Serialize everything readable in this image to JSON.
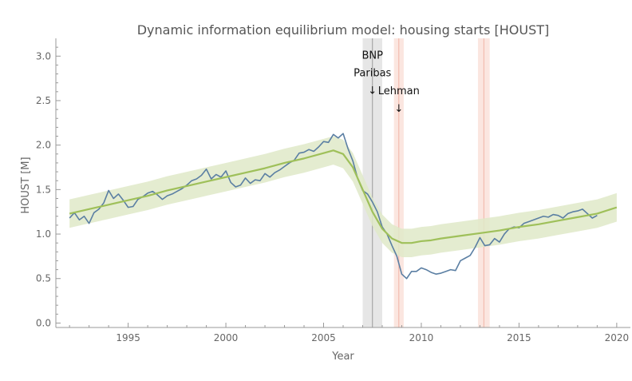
{
  "chart_data": {
    "type": "line",
    "title": "Dynamic information equilibrium model: housing starts [HOUST]",
    "xlabel": "Year",
    "ylabel": "HOUST [M]",
    "xlim": [
      1991.3,
      2020.7
    ],
    "ylim": [
      -0.05,
      3.2
    ],
    "x_ticks": [
      1995,
      2000,
      2005,
      2010,
      2015,
      2020
    ],
    "y_ticks": [
      0.0,
      0.5,
      1.0,
      1.5,
      2.0,
      2.5,
      3.0
    ],
    "grid": false,
    "colors": {
      "data": "#5b7fa3",
      "model": "#9fc05a",
      "band": "#dfe9c8",
      "recession": "#e6e6e6",
      "recession_line": "#9a9a9a",
      "shock": "#fbe6e0",
      "shock_line": "#f0b4a6"
    },
    "series": [
      {
        "name": "HOUST data",
        "x": [
          1992.0,
          1992.25,
          1992.5,
          1992.75,
          1993.0,
          1993.25,
          1993.5,
          1993.75,
          1994.0,
          1994.25,
          1994.5,
          1994.75,
          1995.0,
          1995.25,
          1995.5,
          1995.75,
          1996.0,
          1996.25,
          1996.5,
          1996.75,
          1997.0,
          1997.25,
          1997.5,
          1997.75,
          1998.0,
          1998.25,
          1998.5,
          1998.75,
          1999.0,
          1999.25,
          1999.5,
          1999.75,
          2000.0,
          2000.25,
          2000.5,
          2000.75,
          2001.0,
          2001.25,
          2001.5,
          2001.75,
          2002.0,
          2002.25,
          2002.5,
          2002.75,
          2003.0,
          2003.25,
          2003.5,
          2003.75,
          2004.0,
          2004.25,
          2004.5,
          2004.75,
          2005.0,
          2005.25,
          2005.5,
          2005.75,
          2006.0,
          2006.25,
          2006.5,
          2006.75,
          2007.0,
          2007.25,
          2007.5,
          2007.75,
          2008.0,
          2008.25,
          2008.5,
          2008.75,
          2009.0,
          2009.25,
          2009.5,
          2009.75,
          2010.0,
          2010.25,
          2010.5,
          2010.75,
          2011.0,
          2011.25,
          2011.5,
          2011.75,
          2012.0,
          2012.25,
          2012.5,
          2012.75,
          2013.0,
          2013.25,
          2013.5,
          2013.75,
          2014.0,
          2014.25,
          2014.5,
          2014.75,
          2015.0,
          2015.25,
          2015.5,
          2015.75,
          2016.0,
          2016.25,
          2016.5,
          2016.75,
          2017.0,
          2017.25,
          2017.5,
          2017.75,
          2018.0,
          2018.25,
          2018.5,
          2018.75,
          2019.0
        ],
        "values": [
          1.18,
          1.24,
          1.16,
          1.2,
          1.12,
          1.24,
          1.28,
          1.35,
          1.49,
          1.4,
          1.45,
          1.38,
          1.3,
          1.31,
          1.39,
          1.42,
          1.46,
          1.48,
          1.44,
          1.39,
          1.43,
          1.45,
          1.48,
          1.51,
          1.55,
          1.6,
          1.62,
          1.66,
          1.73,
          1.62,
          1.67,
          1.64,
          1.71,
          1.58,
          1.53,
          1.55,
          1.63,
          1.57,
          1.61,
          1.6,
          1.68,
          1.64,
          1.69,
          1.72,
          1.76,
          1.8,
          1.83,
          1.91,
          1.92,
          1.95,
          1.93,
          1.98,
          2.04,
          2.03,
          2.12,
          2.08,
          2.13,
          1.96,
          1.82,
          1.62,
          1.49,
          1.45,
          1.36,
          1.25,
          1.08,
          1.0,
          0.87,
          0.75,
          0.55,
          0.5,
          0.58,
          0.58,
          0.62,
          0.6,
          0.57,
          0.55,
          0.56,
          0.58,
          0.6,
          0.59,
          0.7,
          0.73,
          0.76,
          0.85,
          0.96,
          0.87,
          0.88,
          0.95,
          0.91,
          1.0,
          1.06,
          1.08,
          1.07,
          1.12,
          1.14,
          1.16,
          1.18,
          1.2,
          1.19,
          1.22,
          1.21,
          1.18,
          1.23,
          1.25,
          1.26,
          1.28,
          1.23,
          1.18,
          1.21
        ]
      },
      {
        "name": "Model",
        "x": [
          1992.0,
          1993.0,
          1994.0,
          1995.0,
          1996.0,
          1997.0,
          1998.0,
          1999.0,
          2000.0,
          2001.0,
          2002.0,
          2003.0,
          2004.0,
          2005.0,
          2005.5,
          2006.0,
          2006.5,
          2007.0,
          2007.5,
          2008.0,
          2008.5,
          2009.0,
          2009.5,
          2010.0,
          2010.5,
          2011.0,
          2012.0,
          2013.0,
          2014.0,
          2015.0,
          2016.0,
          2017.0,
          2018.0,
          2019.0,
          2020.0
        ],
        "values": [
          1.23,
          1.28,
          1.33,
          1.38,
          1.43,
          1.49,
          1.54,
          1.59,
          1.64,
          1.69,
          1.74,
          1.8,
          1.85,
          1.91,
          1.94,
          1.9,
          1.75,
          1.5,
          1.25,
          1.06,
          0.95,
          0.9,
          0.9,
          0.92,
          0.93,
          0.95,
          0.98,
          1.01,
          1.04,
          1.08,
          1.11,
          1.15,
          1.19,
          1.23,
          1.3
        ]
      }
    ],
    "band_halfwidth": 0.16,
    "recession": {
      "start": 2007.0,
      "end": 2008.0,
      "center": 2007.5
    },
    "shocks": [
      {
        "start": 2008.6,
        "end": 2009.1,
        "center": 2008.85
      },
      {
        "start": 2012.9,
        "end": 2013.5,
        "center": 2013.2
      }
    ],
    "annotations": [
      {
        "lines": [
          "BNP",
          "Paribas"
        ],
        "arrow": "↓",
        "x": 2007.5,
        "y": 2.97
      },
      {
        "lines": [
          "Lehman"
        ],
        "arrow": "↓",
        "x": 2008.85,
        "y": 2.57
      }
    ]
  }
}
